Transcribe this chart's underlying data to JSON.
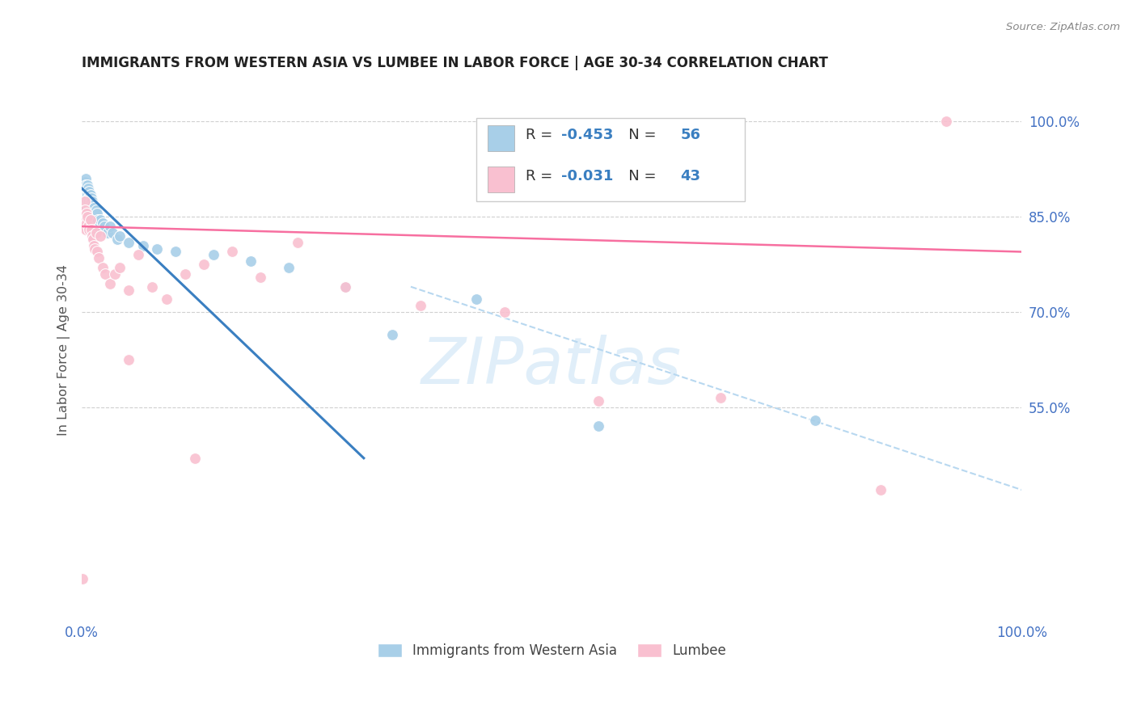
{
  "title": "IMMIGRANTS FROM WESTERN ASIA VS LUMBEE IN LABOR FORCE | AGE 30-34 CORRELATION CHART",
  "source": "Source: ZipAtlas.com",
  "ylabel": "In Labor Force | Age 30-34",
  "ylabel_right_ticks": [
    "100.0%",
    "85.0%",
    "70.0%",
    "55.0%"
  ],
  "ylabel_right_values": [
    1.0,
    0.85,
    0.7,
    0.55
  ],
  "watermark": "ZIPatlas",
  "legend_label1": "Immigrants from Western Asia",
  "legend_label2": "Lumbee",
  "R1": "-0.453",
  "N1": "56",
  "R2": "-0.031",
  "N2": "43",
  "color_blue": "#a8cfe8",
  "color_pink": "#f9c0d0",
  "color_blue_line": "#3a7fc1",
  "color_pink_line": "#f76fa0",
  "color_dashed": "#b8d8f0",
  "blue_points_x": [
    0.001,
    0.002,
    0.002,
    0.003,
    0.003,
    0.003,
    0.004,
    0.004,
    0.004,
    0.005,
    0.005,
    0.005,
    0.006,
    0.006,
    0.006,
    0.007,
    0.007,
    0.007,
    0.008,
    0.008,
    0.008,
    0.009,
    0.009,
    0.01,
    0.01,
    0.011,
    0.011,
    0.012,
    0.012,
    0.013,
    0.014,
    0.015,
    0.015,
    0.016,
    0.017,
    0.018,
    0.02,
    0.022,
    0.024,
    0.027,
    0.03,
    0.033,
    0.038,
    0.04,
    0.05,
    0.065,
    0.08,
    0.1,
    0.14,
    0.18,
    0.22,
    0.28,
    0.33,
    0.42,
    0.55,
    0.78
  ],
  "blue_points_y": [
    0.88,
    0.89,
    0.87,
    0.905,
    0.895,
    0.885,
    0.91,
    0.9,
    0.88,
    0.895,
    0.885,
    0.875,
    0.9,
    0.885,
    0.875,
    0.895,
    0.88,
    0.87,
    0.89,
    0.875,
    0.865,
    0.885,
    0.875,
    0.88,
    0.87,
    0.875,
    0.86,
    0.87,
    0.855,
    0.865,
    0.855,
    0.86,
    0.845,
    0.855,
    0.845,
    0.835,
    0.845,
    0.84,
    0.835,
    0.825,
    0.835,
    0.825,
    0.815,
    0.82,
    0.81,
    0.805,
    0.8,
    0.795,
    0.79,
    0.78,
    0.77,
    0.74,
    0.665,
    0.72,
    0.52,
    0.53
  ],
  "pink_points_x": [
    0.001,
    0.002,
    0.003,
    0.003,
    0.004,
    0.005,
    0.005,
    0.006,
    0.007,
    0.008,
    0.009,
    0.01,
    0.011,
    0.012,
    0.013,
    0.014,
    0.015,
    0.016,
    0.018,
    0.02,
    0.022,
    0.025,
    0.03,
    0.035,
    0.04,
    0.05,
    0.06,
    0.075,
    0.09,
    0.11,
    0.13,
    0.16,
    0.19,
    0.23,
    0.28,
    0.36,
    0.45,
    0.55,
    0.68,
    0.85,
    0.92,
    0.05,
    0.12
  ],
  "pink_points_y": [
    0.28,
    0.85,
    0.875,
    0.86,
    0.83,
    0.855,
    0.84,
    0.85,
    0.835,
    0.83,
    0.845,
    0.83,
    0.82,
    0.815,
    0.805,
    0.8,
    0.825,
    0.795,
    0.785,
    0.82,
    0.77,
    0.76,
    0.745,
    0.76,
    0.77,
    0.735,
    0.79,
    0.74,
    0.72,
    0.76,
    0.775,
    0.795,
    0.755,
    0.81,
    0.74,
    0.71,
    0.7,
    0.56,
    0.565,
    0.42,
    1.0,
    0.625,
    0.47
  ],
  "xlim": [
    0.0,
    1.0
  ],
  "ylim": [
    0.22,
    1.06
  ],
  "blue_trend": [
    0.0,
    0.3
  ],
  "blue_trend_y": [
    0.895,
    0.47
  ],
  "pink_trend": [
    0.0,
    1.0
  ],
  "pink_trend_y": [
    0.835,
    0.795
  ],
  "dashed_trend": [
    0.35,
    1.0
  ],
  "dashed_trend_y": [
    0.74,
    0.42
  ]
}
